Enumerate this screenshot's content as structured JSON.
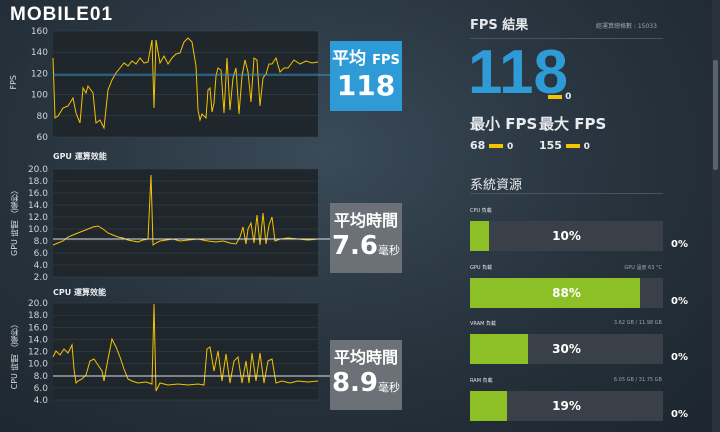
{
  "logo": {
    "text": "MOBILE01"
  },
  "fps_chart": {
    "ylabel": "FPS",
    "ticks": [
      "160",
      "140",
      "120",
      "100",
      "80",
      "60"
    ],
    "avg_label": "平均",
    "avg_label_suffix": "FPS",
    "avg_value": "118"
  },
  "gpu_chart": {
    "title": "GPU 運算效能",
    "ylabel": "GPU 時間 （毫秒）",
    "ticks": [
      "20.0",
      "18.0",
      "16.0",
      "14.0",
      "12.0",
      "10.0",
      "8.0",
      "6.0",
      "4.0",
      "2.0"
    ],
    "box_label": "平均時間",
    "box_value": "7.6",
    "box_unit": "毫秒"
  },
  "cpu_chart": {
    "title": "CPU 運算效能",
    "ylabel": "CPU 時間 （毫秒）",
    "ticks": [
      "20.0",
      "18.0",
      "16.0",
      "14.0",
      "12.0",
      "10.0",
      "8.0",
      "6.0",
      "4.0"
    ],
    "box_label": "平均時間",
    "box_value": "8.9",
    "box_unit": "毫秒"
  },
  "results": {
    "title": "FPS 結果",
    "sample_count": "經運算總格數 : 15033",
    "avg_fps": "118",
    "avg_zero": "0",
    "min_label": "最小 FPS",
    "max_label": "最大 FPS",
    "min_value": "68",
    "min_zero": "0",
    "max_value": "155",
    "max_zero": "0"
  },
  "resources": {
    "title": "系統資源",
    "items": [
      {
        "label": "CPU 負載",
        "sub": "",
        "percent": "10%",
        "fill": 0.1,
        "zero": "0%"
      },
      {
        "label": "GPU 負載",
        "sub": "GPU 溫度 63 °C",
        "percent": "88%",
        "fill": 0.88,
        "zero": "0%"
      },
      {
        "label": "VRAM 負載",
        "sub": "3.62 GB / 11.98 GB",
        "percent": "30%",
        "fill": 0.3,
        "zero": "0%"
      },
      {
        "label": "RAM 負載",
        "sub": "6.05 GB / 31.75 GB",
        "percent": "19%",
        "fill": 0.19,
        "zero": "0%"
      }
    ]
  },
  "colors": {
    "accent_blue": "#2f9bd6",
    "bar_green": "#8dc026",
    "trace_yellow": "#f5c400"
  }
}
